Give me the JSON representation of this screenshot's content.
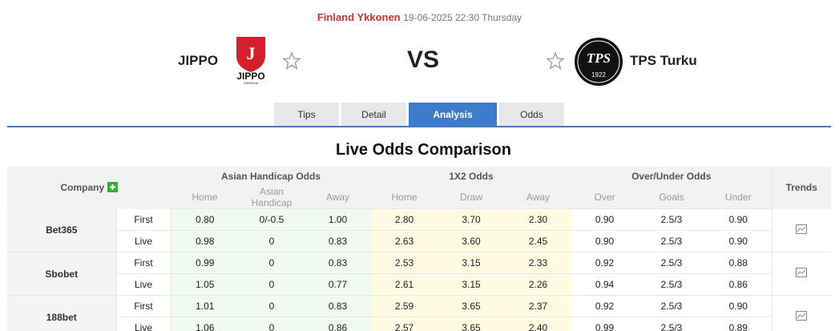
{
  "header": {
    "league": "Finland Ykkonen",
    "datetime": "19-06-2025 22:30 Thursday",
    "home": "JIPPO",
    "away": "TPS Turku",
    "vs": "VS",
    "home_logo": {
      "letter": "J",
      "name": "JIPPO",
      "city": "JOENSUU"
    },
    "away_logo": {
      "name": "TPS",
      "year": "1922"
    }
  },
  "tabs": {
    "items": [
      "Tips",
      "Detail",
      "Analysis",
      "Odds"
    ],
    "active": 2
  },
  "section_title": "Live Odds Comparison",
  "table": {
    "headers": {
      "company": "Company",
      "groups": [
        "Asian Handicap Odds",
        "1X2 Odds",
        "Over/Under Odds"
      ],
      "trends": "Trends",
      "sub": [
        "Home",
        "Asian Handicap",
        "Away",
        "Home",
        "Draw",
        "Away",
        "Over",
        "Goals",
        "Under"
      ]
    },
    "companies": [
      {
        "name": "Bet365",
        "rows": [
          {
            "type": "First",
            "odds": [
              "0.80",
              "0/-0.5",
              "1.00",
              "2.80",
              "3.70",
              "2.30",
              "0.90",
              "2.5/3",
              "0.90"
            ]
          },
          {
            "type": "Live",
            "odds": [
              "0.98",
              "0",
              "0.83",
              "2.63",
              "3.60",
              "2.45",
              "0.90",
              "2.5/3",
              "0.90"
            ]
          }
        ]
      },
      {
        "name": "Sbobet",
        "rows": [
          {
            "type": "First",
            "odds": [
              "0.99",
              "0",
              "0.83",
              "2.53",
              "3.15",
              "2.33",
              "0.92",
              "2.5/3",
              "0.88"
            ]
          },
          {
            "type": "Live",
            "odds": [
              "1.05",
              "0",
              "0.77",
              "2.61",
              "3.15",
              "2.26",
              "0.94",
              "2.5/3",
              "0.86"
            ]
          }
        ]
      },
      {
        "name": "188bet",
        "rows": [
          {
            "type": "First",
            "odds": [
              "1.01",
              "0",
              "0.83",
              "2.59",
              "3.65",
              "2.37",
              "0.92",
              "2.5/3",
              "0.90"
            ]
          },
          {
            "type": "Live",
            "odds": [
              "1.06",
              "0",
              "0.86",
              "2.57",
              "3.65",
              "2.40",
              "0.99",
              "2.5/3",
              "0.89"
            ]
          }
        ]
      }
    ]
  }
}
